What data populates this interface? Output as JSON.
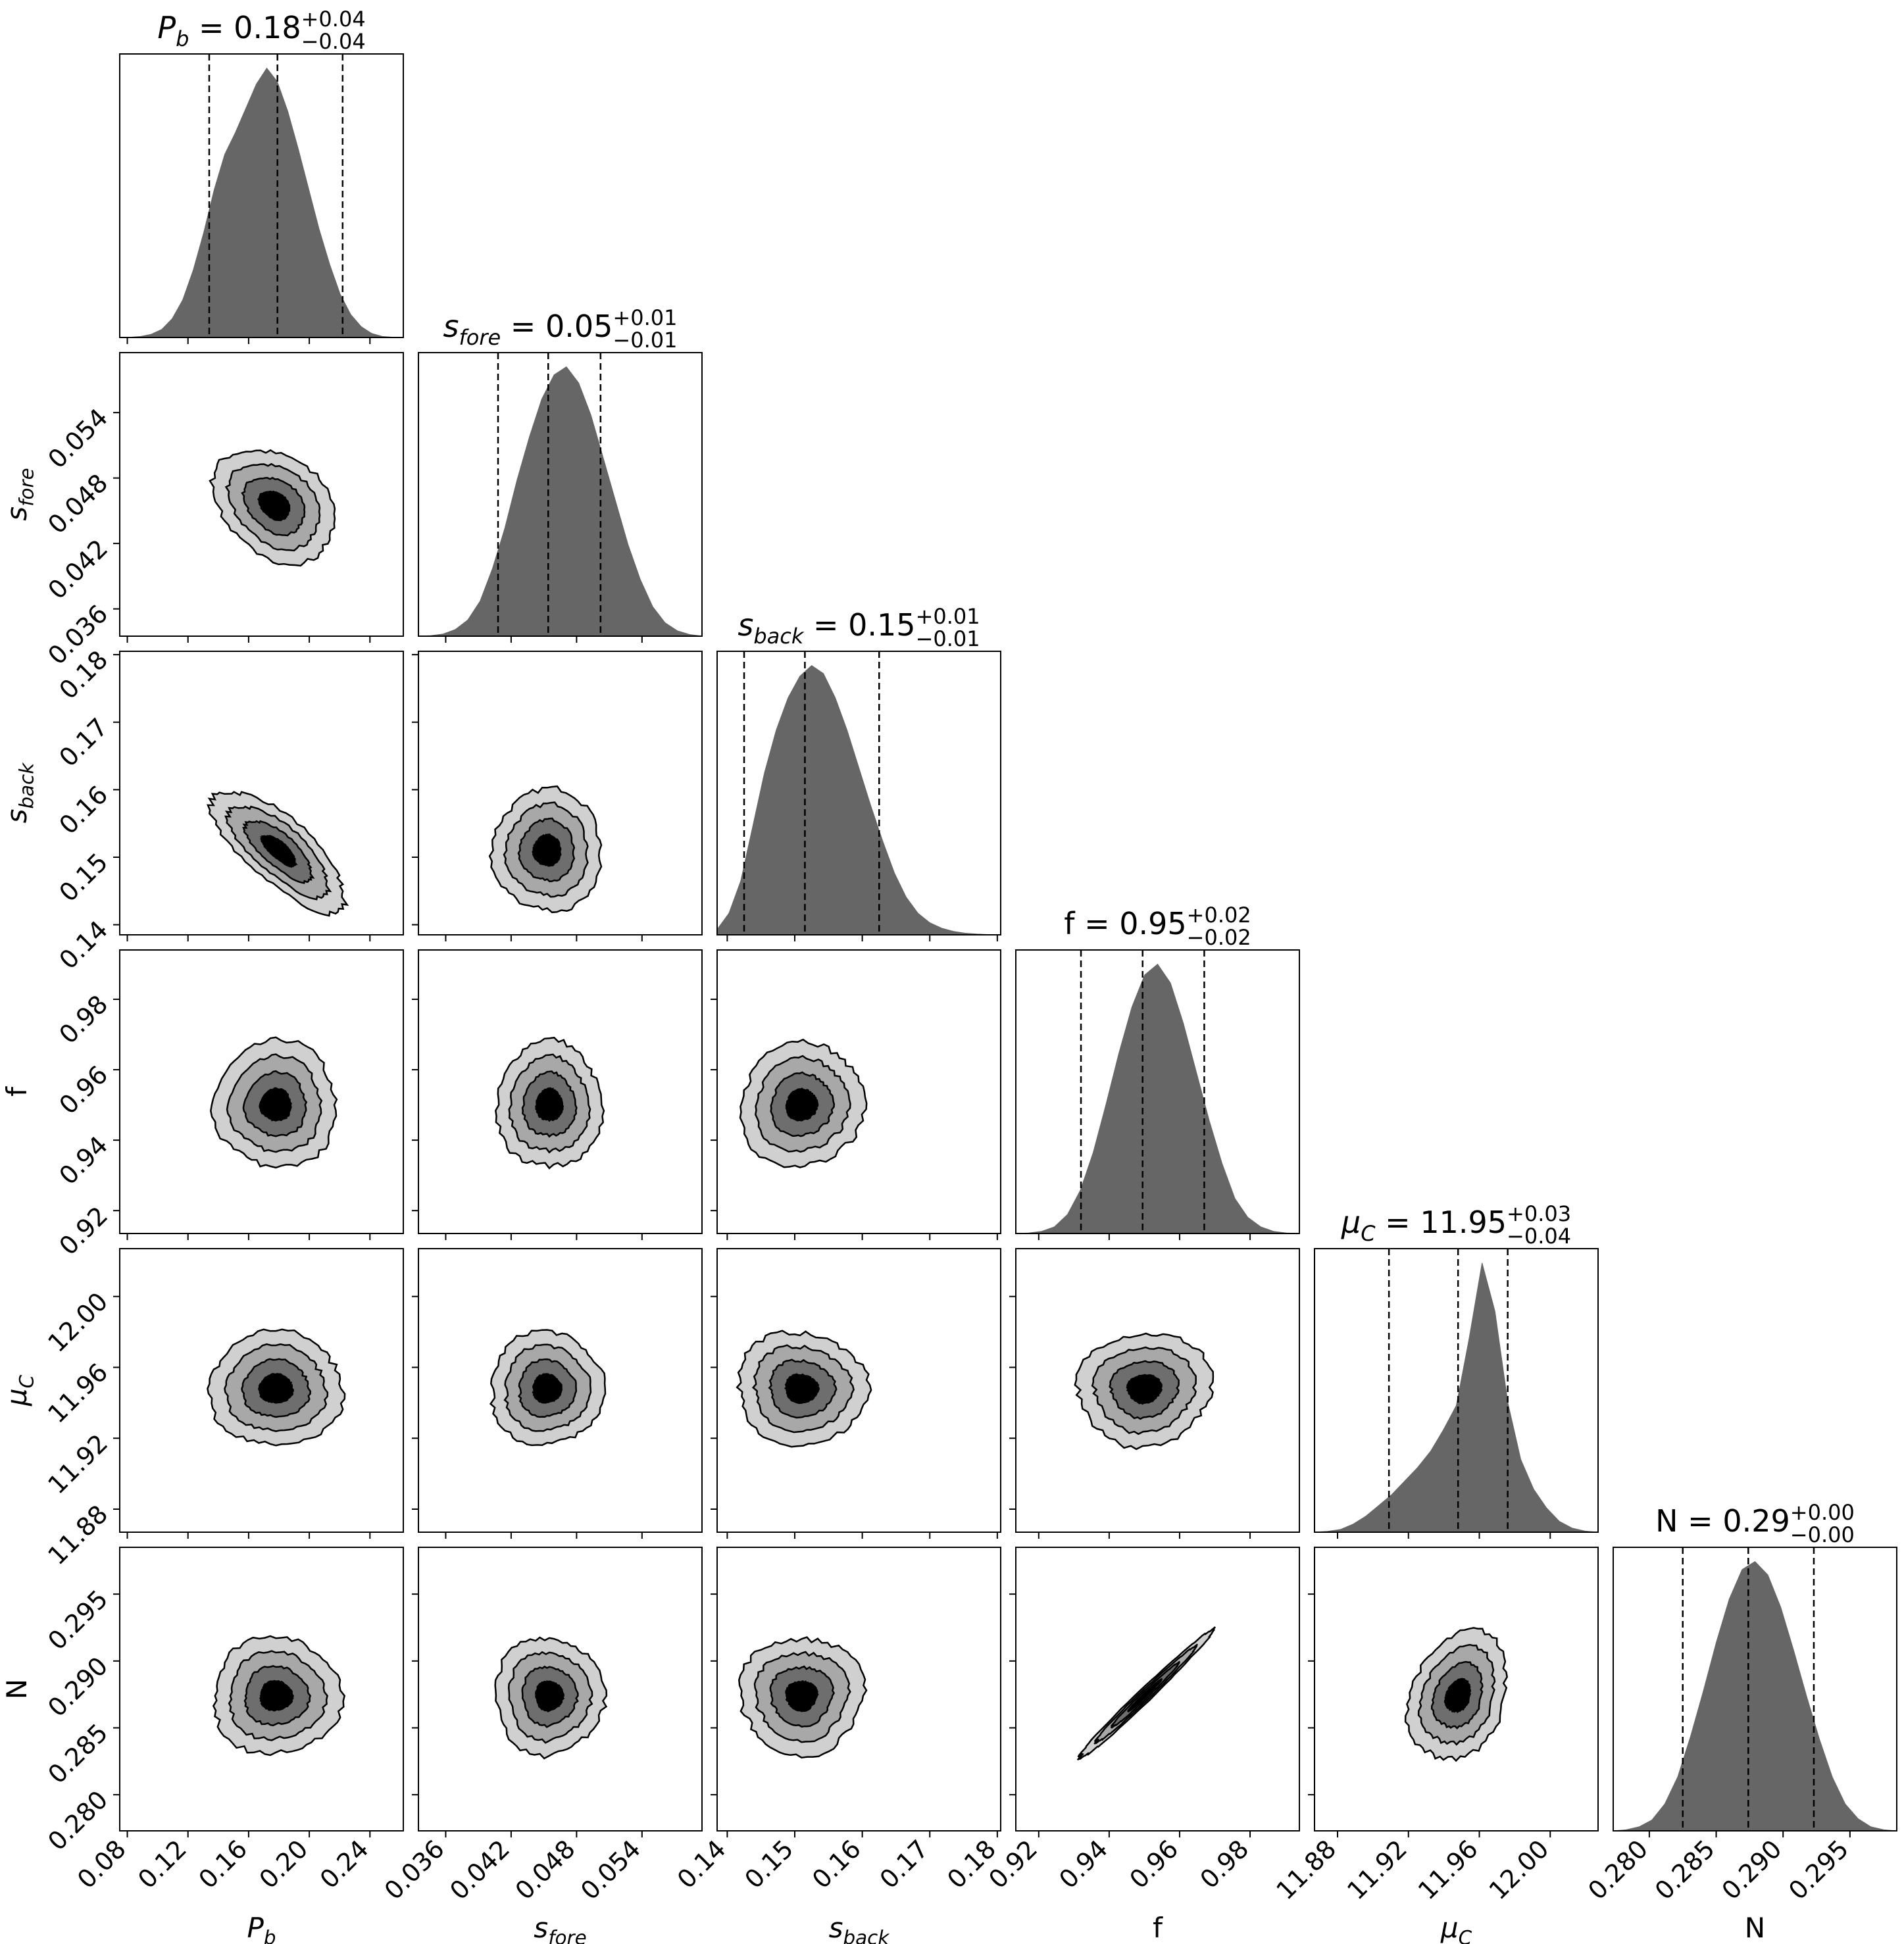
{
  "chart_data": {
    "type": "corner",
    "parameters": [
      {
        "key": "Pb",
        "label_main": "P",
        "label_sub": "b",
        "title_value": "0.18",
        "title_plus": "+0.04",
        "title_minus": "−0.04",
        "median": 0.179,
        "lo": 0.134,
        "hi": 0.222,
        "range": [
          0.075,
          0.262
        ],
        "ticks": [
          0.08,
          0.12,
          0.16,
          0.2,
          0.24
        ],
        "tick_labels": [
          "0.08",
          "0.12",
          "0.16",
          "0.20",
          "0.24"
        ],
        "hist": [
          0.0,
          0.001,
          0.004,
          0.012,
          0.03,
          0.07,
          0.14,
          0.25,
          0.39,
          0.55,
          0.68,
          0.76,
          0.85,
          0.94,
          1.0,
          0.95,
          0.84,
          0.7,
          0.55,
          0.4,
          0.27,
          0.16,
          0.085,
          0.04,
          0.015,
          0.004,
          0.001,
          0.0
        ]
      },
      {
        "key": "sfore",
        "label_main": "s",
        "label_sub": "fore",
        "title_value": "0.05",
        "title_plus": "+0.01",
        "title_minus": "−0.01",
        "median": 0.0454,
        "lo": 0.0408,
        "hi": 0.0502,
        "range": [
          0.0335,
          0.0595
        ],
        "ticks": [
          0.036,
          0.042,
          0.048,
          0.054
        ],
        "tick_labels": [
          "0.036",
          "0.042",
          "0.048",
          "0.054"
        ],
        "hist": [
          0.0,
          0.002,
          0.008,
          0.025,
          0.06,
          0.13,
          0.25,
          0.4,
          0.58,
          0.74,
          0.88,
          0.97,
          1.0,
          0.94,
          0.82,
          0.66,
          0.5,
          0.34,
          0.21,
          0.11,
          0.05,
          0.02,
          0.006,
          0.0
        ]
      },
      {
        "key": "sback",
        "label_main": "s",
        "label_sub": "back",
        "title_value": "0.15",
        "title_plus": "+0.01",
        "title_minus": "−0.01",
        "median": 0.1515,
        "lo": 0.1425,
        "hi": 0.1625,
        "range": [
          0.1385,
          0.1805
        ],
        "ticks": [
          0.14,
          0.15,
          0.16,
          0.17,
          0.18
        ],
        "tick_labels": [
          "0.14",
          "0.15",
          "0.16",
          "0.17",
          "0.18"
        ],
        "hist": [
          0.02,
          0.08,
          0.2,
          0.4,
          0.6,
          0.76,
          0.88,
          0.96,
          1.0,
          0.97,
          0.88,
          0.76,
          0.62,
          0.48,
          0.35,
          0.23,
          0.14,
          0.08,
          0.045,
          0.025,
          0.013,
          0.006,
          0.003,
          0.001,
          0.0
        ]
      },
      {
        "key": "f",
        "label_main": "f",
        "label_sub": "",
        "title_value": "0.95",
        "title_plus": "+0.02",
        "title_minus": "−0.02",
        "median": 0.9495,
        "lo": 0.932,
        "hi": 0.967,
        "range": [
          0.9135,
          0.994
        ],
        "ticks": [
          0.92,
          0.94,
          0.96,
          0.98
        ],
        "tick_labels": [
          "0.92",
          "0.94",
          "0.96",
          "0.98"
        ],
        "hist": [
          0.0,
          0.002,
          0.008,
          0.025,
          0.07,
          0.16,
          0.3,
          0.48,
          0.67,
          0.84,
          0.96,
          1.0,
          0.93,
          0.78,
          0.6,
          0.42,
          0.26,
          0.13,
          0.06,
          0.025,
          0.008,
          0.002,
          0.0
        ]
      },
      {
        "key": "muC",
        "label_main": "μ",
        "label_sub": "C",
        "title_value": "11.95",
        "title_plus": "+0.03",
        "title_minus": "−0.04",
        "median": 11.948,
        "lo": 11.909,
        "hi": 11.976,
        "range": [
          11.867,
          12.027
        ],
        "ticks": [
          11.88,
          11.92,
          11.96,
          12.0
        ],
        "tick_labels": [
          "11.88",
          "11.92",
          "11.96",
          "12.00"
        ],
        "hist": [
          0.0,
          0.003,
          0.01,
          0.03,
          0.06,
          0.1,
          0.14,
          0.19,
          0.24,
          0.3,
          0.38,
          0.47,
          0.72,
          1.0,
          0.82,
          0.48,
          0.27,
          0.16,
          0.09,
          0.04,
          0.015,
          0.004,
          0.0
        ]
      },
      {
        "key": "N",
        "label_main": "N",
        "label_sub": "",
        "title_value": "0.29",
        "title_plus": "+0.00",
        "title_minus": "−0.00",
        "median": 0.2874,
        "lo": 0.2825,
        "hi": 0.2923,
        "range": [
          0.2773,
          0.2985
        ],
        "ticks": [
          0.28,
          0.285,
          0.29,
          0.295
        ],
        "tick_labels": [
          "0.280",
          "0.285",
          "0.290",
          "0.295"
        ],
        "hist": [
          0.0,
          0.004,
          0.015,
          0.04,
          0.1,
          0.2,
          0.35,
          0.52,
          0.7,
          0.86,
          0.97,
          1.0,
          0.95,
          0.83,
          0.67,
          0.5,
          0.34,
          0.2,
          0.1,
          0.045,
          0.015,
          0.004,
          0.0
        ]
      }
    ],
    "contours": [
      {
        "row": 1,
        "col": 0,
        "mean": [
          0.177,
          0.0455
        ],
        "sd": [
          0.02,
          0.0026
        ],
        "rho": -0.3
      },
      {
        "row": 2,
        "col": 0,
        "mean": [
          0.18,
          0.151
        ],
        "sd": [
          0.022,
          0.0045
        ],
        "rho": -0.75
      },
      {
        "row": 2,
        "col": 1,
        "mean": [
          0.0453,
          0.151
        ],
        "sd": [
          0.0025,
          0.0045
        ],
        "rho": 0.0
      },
      {
        "row": 3,
        "col": 0,
        "mean": [
          0.178,
          0.95
        ],
        "sd": [
          0.02,
          0.009
        ],
        "rho": 0.0
      },
      {
        "row": 3,
        "col": 1,
        "mean": [
          0.0455,
          0.95
        ],
        "sd": [
          0.0024,
          0.009
        ],
        "rho": 0.0
      },
      {
        "row": 3,
        "col": 2,
        "mean": [
          0.151,
          0.95
        ],
        "sd": [
          0.0045,
          0.009
        ],
        "rho": 0.05
      },
      {
        "row": 4,
        "col": 0,
        "mean": [
          0.178,
          11.948
        ],
        "sd": [
          0.022,
          0.016
        ],
        "rho": 0.0
      },
      {
        "row": 4,
        "col": 1,
        "mean": [
          0.0453,
          11.948
        ],
        "sd": [
          0.0026,
          0.016
        ],
        "rho": 0.0
      },
      {
        "row": 4,
        "col": 2,
        "mean": [
          0.151,
          11.948
        ],
        "sd": [
          0.0048,
          0.016
        ],
        "rho": -0.05
      },
      {
        "row": 4,
        "col": 3,
        "mean": [
          0.95,
          11.948
        ],
        "sd": [
          0.0095,
          0.016
        ],
        "rho": 0.05
      },
      {
        "row": 5,
        "col": 0,
        "mean": [
          0.178,
          0.2874
        ],
        "sd": [
          0.021,
          0.0022
        ],
        "rho": 0.0
      },
      {
        "row": 5,
        "col": 1,
        "mean": [
          0.0455,
          0.2874
        ],
        "sd": [
          0.0025,
          0.0022
        ],
        "rho": 0.0
      },
      {
        "row": 5,
        "col": 2,
        "mean": [
          0.151,
          0.2874
        ],
        "sd": [
          0.0046,
          0.0022
        ],
        "rho": 0.0
      },
      {
        "row": 5,
        "col": 3,
        "mean": [
          0.95,
          0.2874
        ],
        "sd": [
          0.0095,
          0.0024
        ],
        "rho": 0.99
      },
      {
        "row": 5,
        "col": 4,
        "mean": [
          11.948,
          0.2874
        ],
        "sd": [
          0.014,
          0.0024
        ],
        "rho": 0.25
      }
    ],
    "contour_levels": [
      0.5,
      1.0,
      1.5,
      2.0
    ],
    "contour_fills": [
      "#d0d0d0",
      "#a8a8a8",
      "#6e6e6e",
      "#000000"
    ],
    "hist_color": "#666666",
    "quantile_line_style": "dashed"
  }
}
